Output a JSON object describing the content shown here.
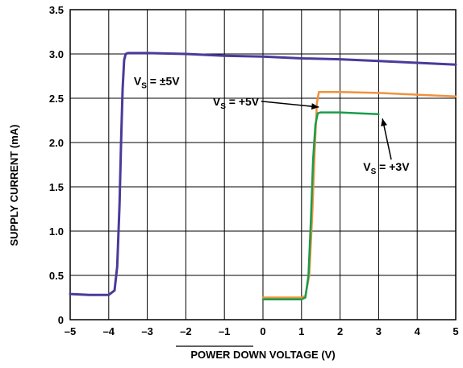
{
  "chart_data": {
    "type": "line",
    "xlabel": "POWER DOWN VOLTAGE (V)",
    "ylabel": "SUPPLY CURRENT (mA)",
    "xlim": [
      -5,
      5
    ],
    "ylim": [
      0,
      3.5
    ],
    "xticks": [
      -5,
      -4,
      -3,
      -2,
      -1,
      0,
      1,
      2,
      3,
      4,
      5
    ],
    "xtick_labels": [
      "–5",
      "–4",
      "–3",
      "–2",
      "–1",
      "0",
      "1",
      "2",
      "3",
      "4",
      "5"
    ],
    "yticks": [
      0,
      0.5,
      1.0,
      1.5,
      2.0,
      2.5,
      3.0,
      3.5
    ],
    "ytick_labels": [
      "0",
      "0.5",
      "1.0",
      "1.5",
      "2.0",
      "2.5",
      "3.0",
      "3.5"
    ],
    "grid": true,
    "series": [
      {
        "name": "±5V",
        "color": "#4b3a9a",
        "x": [
          -5.0,
          -4.5,
          -4.0,
          -3.85,
          -3.78,
          -3.72,
          -3.68,
          -3.64,
          -3.6,
          -3.56,
          -3.5,
          -3.0,
          -2.0,
          -1.0,
          0.0,
          1.0,
          2.0,
          3.0,
          4.0,
          5.0
        ],
        "y": [
          0.29,
          0.28,
          0.28,
          0.33,
          0.6,
          1.3,
          2.0,
          2.6,
          2.93,
          3.0,
          3.01,
          3.01,
          3.0,
          2.98,
          2.97,
          2.95,
          2.94,
          2.92,
          2.9,
          2.88
        ]
      },
      {
        "name": "+5V",
        "color": "#f0923c",
        "x": [
          0.0,
          0.5,
          1.0,
          1.1,
          1.2,
          1.28,
          1.34,
          1.4,
          1.45,
          1.5,
          2.0,
          3.0,
          4.0,
          5.0
        ],
        "y": [
          0.25,
          0.25,
          0.25,
          0.27,
          0.5,
          1.2,
          1.9,
          2.45,
          2.57,
          2.57,
          2.57,
          2.56,
          2.54,
          2.52
        ]
      },
      {
        "name": "+3V",
        "color": "#1a9c4c",
        "x": [
          0.0,
          0.5,
          1.0,
          1.1,
          1.18,
          1.24,
          1.3,
          1.36,
          1.42,
          1.5,
          2.0,
          2.5,
          3.0
        ],
        "y": [
          0.23,
          0.23,
          0.23,
          0.25,
          0.5,
          1.1,
          1.8,
          2.2,
          2.33,
          2.34,
          2.34,
          2.33,
          2.32
        ]
      }
    ],
    "annotations": [
      {
        "series": "±5V",
        "prefix": "V",
        "sub": "S",
        "text": " = ±5V",
        "x": -3.35,
        "y": 2.65
      },
      {
        "series": "+5V",
        "prefix": "V",
        "sub": "S",
        "text": " = +5V",
        "x": -1.3,
        "y": 2.42,
        "arrow_to": [
          1.45,
          2.4
        ]
      },
      {
        "series": "+3V",
        "prefix": "V",
        "sub": "S",
        "text": " = +3V",
        "x": 2.6,
        "y": 1.68,
        "arrow_to": [
          3.1,
          2.27
        ]
      }
    ]
  }
}
